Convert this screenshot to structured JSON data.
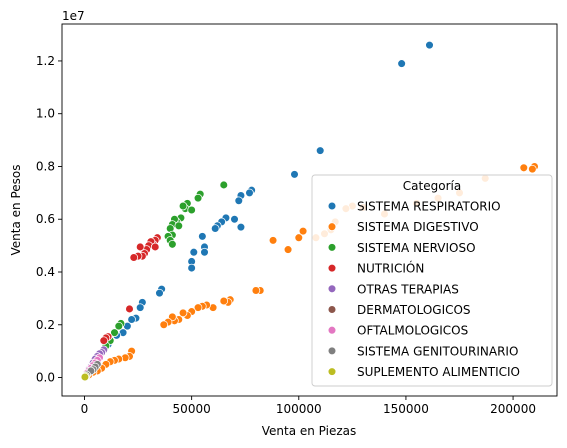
{
  "chart_data": {
    "type": "scatter",
    "title": "",
    "xlabel": "Venta en Piezas",
    "ylabel": "Venta en Pesos",
    "y_offset_label": "1e7",
    "xlim": [
      -10500,
      220500
    ],
    "ylim": [
      -700000,
      13400000
    ],
    "x_ticks": [
      0,
      50000,
      100000,
      150000,
      200000
    ],
    "x_tick_labels": [
      "0",
      "50000",
      "100000",
      "150000",
      "200000"
    ],
    "y_ticks": [
      0,
      2000000,
      4000000,
      6000000,
      8000000,
      10000000,
      12000000
    ],
    "y_tick_labels": [
      "0.0",
      "0.2",
      "0.4",
      "0.6",
      "0.8",
      "1.0",
      "1.2"
    ],
    "grid": false,
    "legend": {
      "title": "Categoría",
      "placement": "lower-right"
    },
    "series": [
      {
        "name": "SISTEMA RESPIRATORIO",
        "color": "#1f77b4",
        "points": [
          [
            161000,
            12600000
          ],
          [
            148000,
            11900000
          ],
          [
            110000,
            8600000
          ],
          [
            98000,
            7700000
          ],
          [
            78000,
            7100000
          ],
          [
            77000,
            7000000
          ],
          [
            73000,
            6900000
          ],
          [
            72000,
            6700000
          ],
          [
            70000,
            6000000
          ],
          [
            66000,
            6050000
          ],
          [
            64000,
            5900000
          ],
          [
            62000,
            5750000
          ],
          [
            61000,
            5650000
          ],
          [
            73000,
            5700000
          ],
          [
            55000,
            5350000
          ],
          [
            56000,
            4950000
          ],
          [
            56000,
            4750000
          ],
          [
            51000,
            4750000
          ],
          [
            50000,
            4400000
          ],
          [
            50000,
            4150000
          ],
          [
            36000,
            3350000
          ],
          [
            35000,
            3200000
          ],
          [
            27000,
            2850000
          ],
          [
            26000,
            2650000
          ],
          [
            24000,
            2250000
          ],
          [
            22000,
            2200000
          ],
          [
            20000,
            1950000
          ],
          [
            18000,
            1700000
          ],
          [
            15000,
            1600000
          ],
          [
            12000,
            1400000
          ],
          [
            11000,
            1250000
          ],
          [
            9000,
            1050000
          ],
          [
            7000,
            800000
          ],
          [
            5000,
            550000
          ],
          [
            3000,
            350000
          ],
          [
            2000,
            200000
          ],
          [
            1000,
            100000
          ]
        ]
      },
      {
        "name": "SISTEMA DIGESTIVO",
        "color": "#ff7f0e",
        "points": [
          [
            210000,
            8000000
          ],
          [
            209000,
            7900000
          ],
          [
            205000,
            7950000
          ],
          [
            187000,
            7550000
          ],
          [
            175000,
            7000000
          ],
          [
            165000,
            6800000
          ],
          [
            155000,
            6600000
          ],
          [
            140000,
            6200000
          ],
          [
            130000,
            6450000
          ],
          [
            125000,
            6500000
          ],
          [
            122000,
            6400000
          ],
          [
            117000,
            5900000
          ],
          [
            115000,
            5600000
          ],
          [
            112000,
            5450000
          ],
          [
            108000,
            5300000
          ],
          [
            102000,
            5550000
          ],
          [
            100000,
            5300000
          ],
          [
            95000,
            4850000
          ],
          [
            88000,
            5200000
          ],
          [
            82000,
            3300000
          ],
          [
            80000,
            3300000
          ],
          [
            68000,
            2950000
          ],
          [
            67000,
            2850000
          ],
          [
            65000,
            2900000
          ],
          [
            60000,
            2650000
          ],
          [
            57000,
            2750000
          ],
          [
            55000,
            2700000
          ],
          [
            53000,
            2650000
          ],
          [
            50000,
            2500000
          ],
          [
            48000,
            2350000
          ],
          [
            46000,
            2450000
          ],
          [
            44000,
            2200000
          ],
          [
            42000,
            2150000
          ],
          [
            41000,
            2300000
          ],
          [
            39000,
            2100000
          ],
          [
            37000,
            2000000
          ],
          [
            22000,
            1000000
          ],
          [
            21000,
            800000
          ],
          [
            19000,
            750000
          ],
          [
            16000,
            700000
          ],
          [
            14000,
            650000
          ],
          [
            12000,
            600000
          ],
          [
            10000,
            500000
          ],
          [
            8000,
            350000
          ],
          [
            6000,
            250000
          ],
          [
            4000,
            200000
          ],
          [
            2000,
            100000
          ]
        ]
      },
      {
        "name": "SISTEMA NERVIOSO",
        "color": "#2ca02c",
        "points": [
          [
            65000,
            7300000
          ],
          [
            54000,
            6950000
          ],
          [
            53000,
            6800000
          ],
          [
            48000,
            6600000
          ],
          [
            47000,
            6400000
          ],
          [
            46000,
            6500000
          ],
          [
            50000,
            6350000
          ],
          [
            45000,
            6050000
          ],
          [
            43000,
            5900000
          ],
          [
            42000,
            6000000
          ],
          [
            41000,
            5800000
          ],
          [
            44000,
            5750000
          ],
          [
            40000,
            5650000
          ],
          [
            41000,
            5400000
          ],
          [
            39000,
            5350000
          ],
          [
            40000,
            5200000
          ],
          [
            41000,
            5050000
          ],
          [
            17000,
            2050000
          ],
          [
            16000,
            1950000
          ],
          [
            14000,
            1700000
          ],
          [
            12000,
            1400000
          ],
          [
            10000,
            1200000
          ],
          [
            8000,
            950000
          ],
          [
            6000,
            700000
          ]
        ]
      },
      {
        "name": "NUTRICIÓN",
        "color": "#d62728",
        "points": [
          [
            34000,
            5300000
          ],
          [
            33000,
            5200000
          ],
          [
            32000,
            5050000
          ],
          [
            31000,
            5150000
          ],
          [
            30000,
            5000000
          ],
          [
            33000,
            4950000
          ],
          [
            29000,
            4850000
          ],
          [
            28000,
            4700000
          ],
          [
            26000,
            4950000
          ],
          [
            27000,
            4600000
          ],
          [
            25000,
            4600000
          ],
          [
            23000,
            4550000
          ],
          [
            21000,
            2600000
          ],
          [
            11000,
            1550000
          ],
          [
            10000,
            1500000
          ],
          [
            9000,
            1400000
          ]
        ]
      },
      {
        "name": "OTRAS TERAPIAS",
        "color": "#9467bd",
        "points": [
          [
            9000,
            1050000
          ],
          [
            8000,
            950000
          ],
          [
            7000,
            900000
          ],
          [
            6000,
            800000
          ],
          [
            5000,
            700000
          ],
          [
            4000,
            550000
          ],
          [
            3000,
            400000
          ],
          [
            2000,
            300000
          ]
        ]
      },
      {
        "name": "DERMATOLOGICOS",
        "color": "#8c564b",
        "points": [
          [
            5000,
            500000
          ],
          [
            4000,
            400000
          ],
          [
            3000,
            300000
          ],
          [
            2000,
            200000
          ],
          [
            1000,
            100000
          ]
        ]
      },
      {
        "name": "OFTALMOLOGICOS",
        "color": "#e377c2",
        "points": [
          [
            7000,
            750000
          ],
          [
            6000,
            650000
          ],
          [
            5000,
            550000
          ],
          [
            4000,
            450000
          ],
          [
            3000,
            350000
          ],
          [
            2000,
            250000
          ],
          [
            1000,
            150000
          ]
        ]
      },
      {
        "name": "SISTEMA GENITOURINARIO",
        "color": "#7f7f7f",
        "points": [
          [
            6000,
            500000
          ],
          [
            5000,
            400000
          ],
          [
            4000,
            300000
          ],
          [
            3000,
            250000
          ],
          [
            1000,
            100000
          ]
        ]
      },
      {
        "name": "SUPLEMENTO ALIMENTICIO",
        "color": "#bcbd22",
        "points": [
          [
            500,
            50000
          ],
          [
            200,
            20000
          ]
        ]
      }
    ]
  }
}
